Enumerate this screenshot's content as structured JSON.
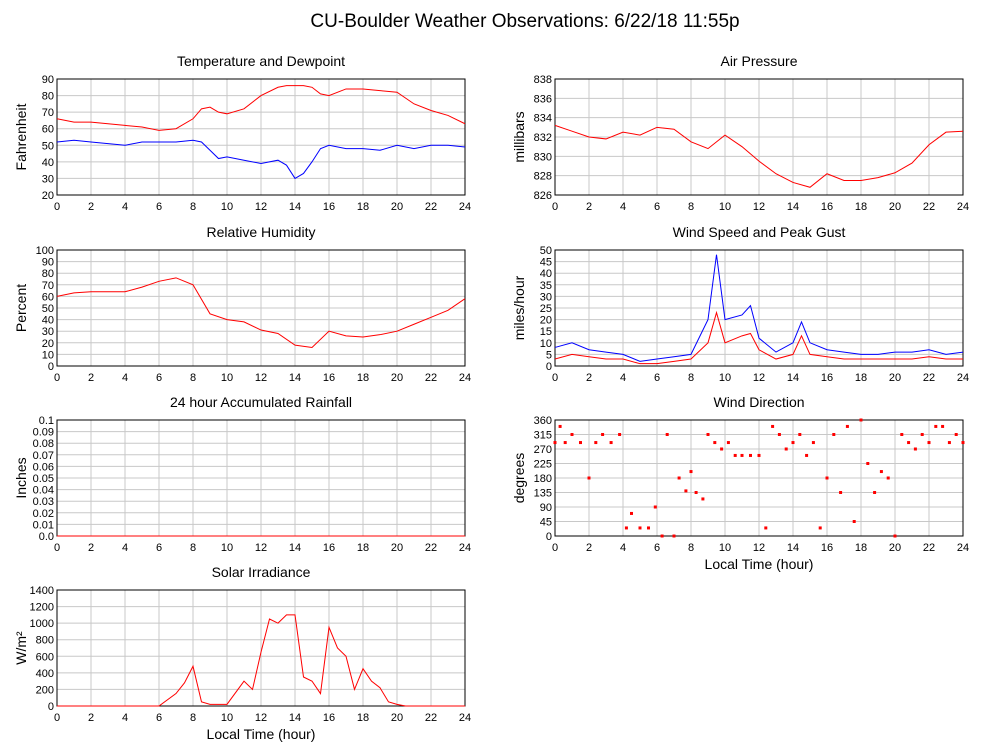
{
  "title": "CU-Boulder Weather Observations: 6/22/18 11:55p",
  "chart_data": [
    {
      "type": "line",
      "title": "Temperature and Dewpoint",
      "ylabel": "Fahrenheit",
      "xlim": [
        0,
        24
      ],
      "xticks": [
        0,
        2,
        4,
        6,
        8,
        10,
        12,
        14,
        16,
        18,
        20,
        22,
        24
      ],
      "ylim": [
        20,
        90
      ],
      "yticks": [
        20,
        30,
        40,
        50,
        60,
        70,
        80,
        90
      ],
      "grid": true,
      "x": [
        0,
        1,
        2,
        3,
        4,
        5,
        6,
        7,
        8,
        8.5,
        9,
        9.5,
        10,
        11,
        12,
        13,
        13.5,
        14,
        14.5,
        15,
        15.5,
        16,
        17,
        18,
        19,
        20,
        21,
        22,
        23,
        24
      ],
      "series": [
        {
          "color": "#ff0000",
          "values": [
            66,
            64,
            64,
            63,
            62,
            61,
            59,
            60,
            66,
            72,
            73,
            70,
            69,
            72,
            80,
            85,
            86,
            86,
            86,
            85,
            81,
            80,
            84,
            84,
            83,
            82,
            75,
            71,
            68,
            63
          ]
        },
        {
          "color": "#0000ff",
          "values": [
            52,
            53,
            52,
            51,
            50,
            52,
            52,
            52,
            53,
            52,
            47,
            42,
            43,
            41,
            39,
            41,
            38,
            30,
            33,
            40,
            48,
            50,
            48,
            48,
            47,
            50,
            48,
            50,
            50,
            49
          ]
        }
      ]
    },
    {
      "type": "line",
      "title": "Air Pressure",
      "ylabel": "millibars",
      "xlim": [
        0,
        24
      ],
      "xticks": [
        0,
        2,
        4,
        6,
        8,
        10,
        12,
        14,
        16,
        18,
        20,
        22,
        24
      ],
      "ylim": [
        826,
        838
      ],
      "yticks": [
        826,
        828,
        830,
        832,
        834,
        836,
        838
      ],
      "grid": true,
      "x": [
        0,
        1,
        2,
        3,
        4,
        5,
        6,
        7,
        8,
        9,
        10,
        11,
        12,
        13,
        14,
        15,
        16,
        17,
        18,
        19,
        20,
        21,
        22,
        23,
        24
      ],
      "series": [
        {
          "color": "#ff0000",
          "values": [
            833.2,
            832.6,
            832.0,
            831.8,
            832.5,
            832.2,
            833.0,
            832.8,
            831.5,
            830.8,
            832.2,
            831,
            829.5,
            828.2,
            827.3,
            826.8,
            828.2,
            827.5,
            827.5,
            827.8,
            828.3,
            829.3,
            831.2,
            832.5,
            832.6
          ]
        }
      ]
    },
    {
      "type": "line",
      "title": "Relative Humidity",
      "ylabel": "Percent",
      "xlim": [
        0,
        24
      ],
      "xticks": [
        0,
        2,
        4,
        6,
        8,
        10,
        12,
        14,
        16,
        18,
        20,
        22,
        24
      ],
      "ylim": [
        0,
        100
      ],
      "yticks": [
        0,
        10,
        20,
        30,
        40,
        50,
        60,
        70,
        80,
        90,
        100
      ],
      "grid": true,
      "x": [
        0,
        1,
        2,
        3,
        4,
        5,
        6,
        7,
        8,
        9,
        10,
        11,
        12,
        13,
        14,
        15,
        16,
        17,
        18,
        19,
        20,
        21,
        22,
        23,
        24
      ],
      "series": [
        {
          "color": "#ff0000",
          "values": [
            60,
            63,
            64,
            64,
            64,
            68,
            73,
            76,
            70,
            45,
            40,
            38,
            31,
            28,
            18,
            16,
            30,
            26,
            25,
            27,
            30,
            36,
            42,
            48,
            58
          ]
        }
      ]
    },
    {
      "type": "line",
      "title": "Wind Speed and Peak Gust",
      "ylabel": "miles/hour",
      "xlim": [
        0,
        24
      ],
      "xticks": [
        0,
        2,
        4,
        6,
        8,
        10,
        12,
        14,
        16,
        18,
        20,
        22,
        24
      ],
      "ylim": [
        0,
        50
      ],
      "yticks": [
        0,
        5,
        10,
        15,
        20,
        25,
        30,
        35,
        40,
        45,
        50
      ],
      "grid": true,
      "x": [
        0,
        1,
        2,
        3,
        4,
        5,
        6,
        7,
        8,
        9,
        9.5,
        10,
        11,
        11.5,
        12,
        13,
        14,
        14.5,
        15,
        16,
        17,
        18,
        19,
        20,
        21,
        22,
        23,
        24
      ],
      "series": [
        {
          "color": "#0000ff",
          "values": [
            8,
            10,
            7,
            6,
            5,
            2,
            3,
            4,
            5,
            20,
            48,
            20,
            22,
            26,
            12,
            6,
            10,
            19,
            10,
            7,
            6,
            5,
            5,
            6,
            6,
            7,
            5,
            6
          ]
        },
        {
          "color": "#ff0000",
          "values": [
            3,
            5,
            4,
            3,
            3,
            1,
            1,
            2,
            3,
            10,
            23,
            10,
            13,
            14,
            7,
            3,
            5,
            13,
            5,
            4,
            3,
            3,
            3,
            3,
            3,
            4,
            3,
            3
          ]
        }
      ]
    },
    {
      "type": "line",
      "title": "24 hour Accumulated Rainfall",
      "ylabel": "Inches",
      "xlim": [
        0,
        24
      ],
      "xticks": [
        0,
        2,
        4,
        6,
        8,
        10,
        12,
        14,
        16,
        18,
        20,
        22,
        24
      ],
      "ylim": [
        0,
        0.1
      ],
      "yticks": [
        {
          "value": 0,
          "label": "0.0"
        },
        0.01,
        0.02,
        0.03,
        0.04,
        0.05,
        0.06,
        0.07,
        0.08,
        0.09,
        0.1
      ],
      "grid": true,
      "x": [
        0,
        24
      ],
      "series": [
        {
          "color": "#ff0000",
          "values": [
            0,
            0
          ]
        }
      ]
    },
    {
      "type": "scatter",
      "title": "Wind Direction",
      "ylabel": "degrees",
      "xlabel": "Local Time (hour)",
      "xlim": [
        0,
        24
      ],
      "xticks": [
        0,
        2,
        4,
        6,
        8,
        10,
        12,
        14,
        16,
        18,
        20,
        22,
        24
      ],
      "ylim": [
        0,
        360
      ],
      "yticks": [
        0,
        45,
        90,
        135,
        180,
        225,
        270,
        315,
        360
      ],
      "grid": true,
      "x": [
        0,
        0.3,
        0.6,
        1,
        1.5,
        2,
        2.4,
        2.8,
        3.3,
        3.8,
        4.2,
        4.5,
        5,
        5.5,
        5.9,
        6.3,
        6.6,
        7,
        7.3,
        7.7,
        8,
        8.3,
        8.7,
        9,
        9.4,
        9.8,
        10.2,
        10.6,
        11,
        11.5,
        12,
        12.4,
        12.8,
        13.2,
        13.6,
        14,
        14.4,
        14.8,
        15.2,
        15.6,
        16,
        16.4,
        16.8,
        17.2,
        17.6,
        18,
        18.4,
        18.8,
        19.2,
        19.6,
        20,
        20.4,
        20.8,
        21.2,
        21.6,
        22,
        22.4,
        22.8,
        23.2,
        23.6,
        24
      ],
      "series": [
        {
          "color": "#ff0000",
          "values": [
            290,
            340,
            290,
            315,
            290,
            180,
            290,
            315,
            290,
            315,
            25,
            70,
            25,
            25,
            90,
            0,
            315,
            0,
            180,
            140,
            200,
            135,
            115,
            315,
            290,
            270,
            290,
            250,
            250,
            250,
            250,
            25,
            340,
            315,
            270,
            290,
            315,
            250,
            290,
            25,
            180,
            315,
            135,
            340,
            45,
            360,
            225,
            135,
            200,
            180,
            0,
            315,
            290,
            270,
            315,
            290,
            340,
            340,
            290,
            315,
            290
          ]
        }
      ]
    },
    {
      "type": "line",
      "title": "Solar Irradiance",
      "ylabel": "W/m²",
      "xlabel": "Local Time (hour)",
      "xlim": [
        0,
        24
      ],
      "xticks": [
        0,
        2,
        4,
        6,
        8,
        10,
        12,
        14,
        16,
        18,
        20,
        22,
        24
      ],
      "ylim": [
        0,
        1400
      ],
      "yticks": [
        0,
        200,
        400,
        600,
        800,
        1000,
        1200,
        1400
      ],
      "grid": true,
      "x": [
        0,
        6,
        7,
        7.5,
        8,
        8.5,
        9,
        10,
        11,
        11.5,
        12,
        12.5,
        13,
        13.5,
        14,
        14.5,
        15,
        15.5,
        16,
        16.5,
        17,
        17.5,
        18,
        18.5,
        19,
        19.5,
        20,
        20.5,
        24
      ],
      "series": [
        {
          "color": "#ff0000",
          "values": [
            0,
            0,
            150,
            280,
            480,
            50,
            20,
            20,
            300,
            200,
            650,
            1050,
            1000,
            1100,
            1100,
            350,
            300,
            150,
            950,
            700,
            600,
            200,
            450,
            300,
            220,
            50,
            20,
            0,
            0
          ]
        }
      ]
    }
  ]
}
